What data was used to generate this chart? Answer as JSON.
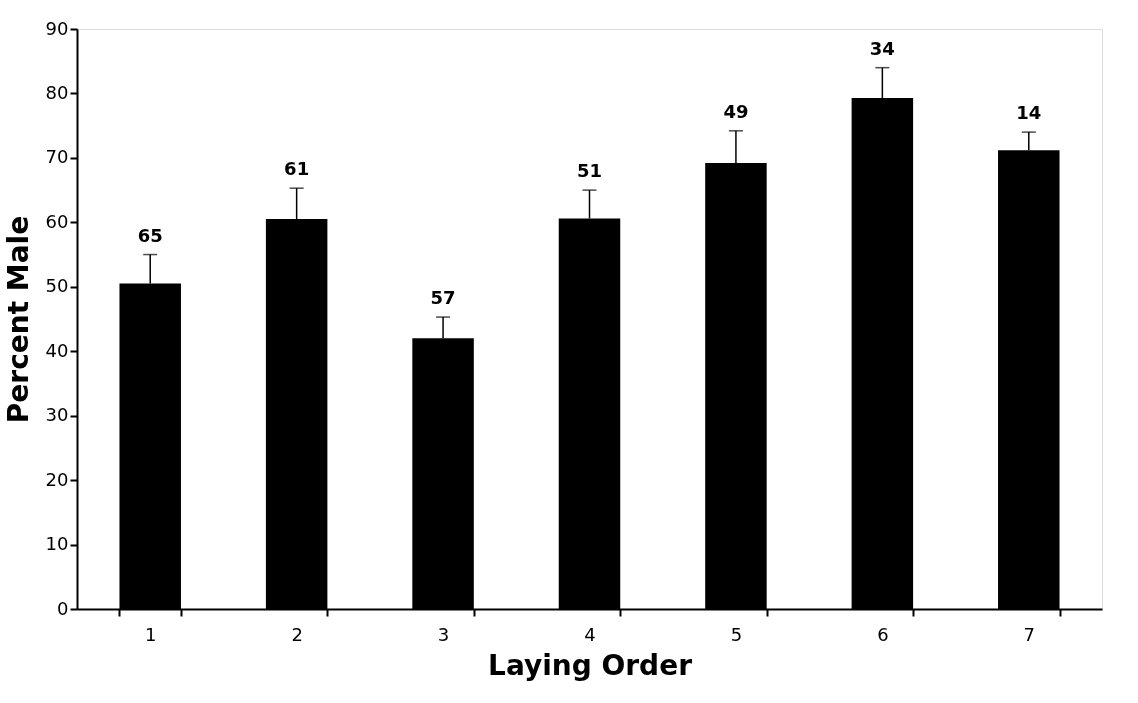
{
  "chart_data": {
    "type": "bar",
    "xlabel": "Laying Order",
    "ylabel": "Percent Male",
    "categories": [
      "1",
      "2",
      "3",
      "4",
      "5",
      "6",
      "7"
    ],
    "values": [
      50.5,
      60.5,
      42,
      60.6,
      69.2,
      79.3,
      71.2
    ],
    "errors": [
      [
        50.5,
        55
      ],
      [
        60.5,
        65.3
      ],
      [
        42,
        45.3
      ],
      [
        60.6,
        65
      ],
      [
        69.2,
        74.2
      ],
      [
        79.3,
        84
      ],
      [
        71.2,
        74
      ]
    ],
    "annotations": [
      {
        "text": "65",
        "x": "1",
        "y": 55
      },
      {
        "text": "61",
        "x": "2",
        "y": 65.3
      },
      {
        "text": "57",
        "x": "3",
        "y": 45.3
      },
      {
        "text": "51",
        "x": "4",
        "y": 65
      },
      {
        "text": "49",
        "x": "5",
        "y": 74.2
      },
      {
        "text": "34",
        "x": "6",
        "y": 84
      },
      {
        "text": "14",
        "x": "7",
        "y": 74
      }
    ],
    "color": "#000000",
    "ylim": [
      0,
      90
    ],
    "yticks": [
      0,
      10,
      20,
      30,
      40,
      50,
      60,
      70,
      80,
      90
    ],
    "grid": false
  }
}
